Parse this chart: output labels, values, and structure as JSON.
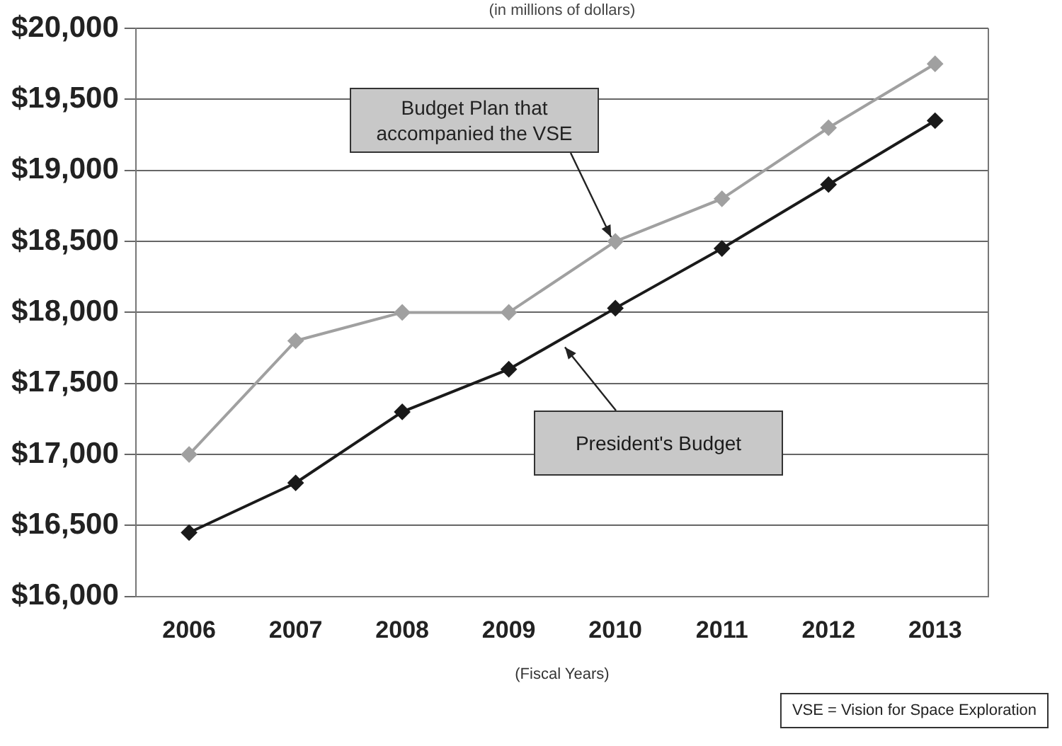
{
  "chart_data": {
    "type": "line",
    "subtitle": "(in millions of dollars)",
    "xlabel": "(Fiscal Years)",
    "categories": [
      "2006",
      "2007",
      "2008",
      "2009",
      "2010",
      "2011",
      "2012",
      "2013"
    ],
    "series": [
      {
        "name": "Budget Plan that accompanied the VSE",
        "color": "#a0a0a0",
        "values": [
          17000,
          17800,
          18000,
          18000,
          18500,
          18800,
          19300,
          19750
        ]
      },
      {
        "name": "President's Budget",
        "color": "#1a1a1a",
        "values": [
          16450,
          16800,
          17300,
          17600,
          18030,
          18450,
          18900,
          19350
        ]
      }
    ],
    "ylim": [
      16000,
      20000
    ],
    "yticks": [
      {
        "value": 16000,
        "label": "$16,000"
      },
      {
        "value": 16500,
        "label": "$16,500"
      },
      {
        "value": 17000,
        "label": "$17,000"
      },
      {
        "value": 17500,
        "label": "$17,500"
      },
      {
        "value": 18000,
        "label": "$18,000"
      },
      {
        "value": 18500,
        "label": "$18,500"
      },
      {
        "value": 19000,
        "label": "$19,000"
      },
      {
        "value": 19500,
        "label": "$19,500"
      },
      {
        "value": 20000,
        "label": "$20,000"
      }
    ],
    "grid": "y",
    "marker": "diamond",
    "line_style": "solid",
    "legend": false,
    "annotations": [
      "VSE = Vision for Space Exploration"
    ]
  }
}
